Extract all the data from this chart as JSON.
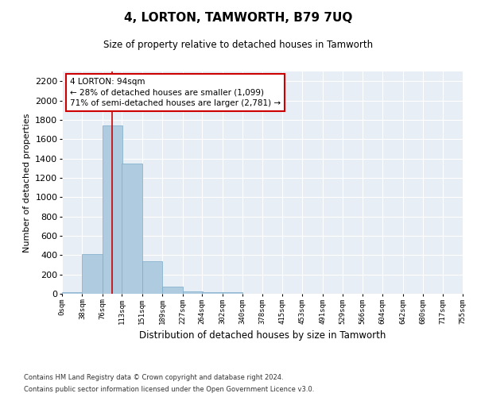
{
  "title": "4, LORTON, TAMWORTH, B79 7UQ",
  "subtitle": "Size of property relative to detached houses in Tamworth",
  "xlabel": "Distribution of detached houses by size in Tamworth",
  "ylabel": "Number of detached properties",
  "bar_color": "#aecbdf",
  "bar_edge_color": "#7aaac8",
  "background_color": "#e8eef5",
  "grid_color": "#ffffff",
  "annotation_line_color": "#cc0000",
  "annotation_box_color": "#cc0000",
  "property_size_sqm": 94,
  "annotation_text_line1": "4 LORTON: 94sqm",
  "annotation_text_line2": "← 28% of detached houses are smaller (1,099)",
  "annotation_text_line3": "71% of semi-detached houses are larger (2,781) →",
  "footnote1": "Contains HM Land Registry data © Crown copyright and database right 2024.",
  "footnote2": "Contains public sector information licensed under the Open Government Licence v3.0.",
  "bin_labels": [
    "0sqm",
    "38sqm",
    "76sqm",
    "113sqm",
    "151sqm",
    "189sqm",
    "227sqm",
    "264sqm",
    "302sqm",
    "340sqm",
    "378sqm",
    "415sqm",
    "453sqm",
    "491sqm",
    "529sqm",
    "566sqm",
    "604sqm",
    "642sqm",
    "680sqm",
    "717sqm",
    "755sqm"
  ],
  "bin_edges": [
    0,
    38,
    76,
    113,
    151,
    189,
    227,
    264,
    302,
    340,
    378,
    415,
    453,
    491,
    529,
    566,
    604,
    642,
    680,
    717,
    755
  ],
  "bar_heights": [
    15,
    410,
    1740,
    1345,
    340,
    70,
    25,
    20,
    20,
    0,
    0,
    0,
    0,
    0,
    0,
    0,
    0,
    0,
    0,
    0
  ],
  "ylim": [
    0,
    2300
  ],
  "yticks": [
    0,
    200,
    400,
    600,
    800,
    1000,
    1200,
    1400,
    1600,
    1800,
    2000,
    2200
  ]
}
